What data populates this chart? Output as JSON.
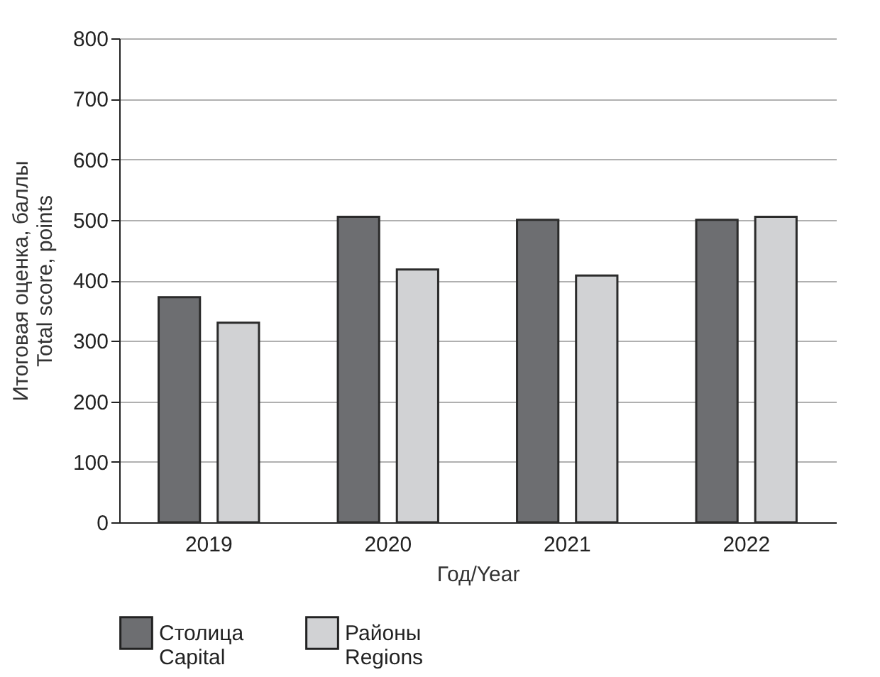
{
  "chart_data": {
    "type": "bar",
    "xlabel": "Год/Year",
    "ylabel": "Итоговая оценка, баллы\nTotal score, points",
    "categories": [
      "2019",
      "2020",
      "2021",
      "2022"
    ],
    "series": [
      {
        "name": "Столица\nCapital",
        "color": "#6d6e71",
        "values": [
          372,
          505,
          500,
          500
        ]
      },
      {
        "name": "Районы\nRegions",
        "color": "#d1d2d4",
        "values": [
          330,
          418,
          408,
          505
        ]
      }
    ],
    "ylim": [
      0,
      800
    ],
    "yticks": [
      0,
      100,
      200,
      300,
      400,
      500,
      600,
      700,
      800
    ],
    "grid": "y",
    "legend": "bottom"
  }
}
